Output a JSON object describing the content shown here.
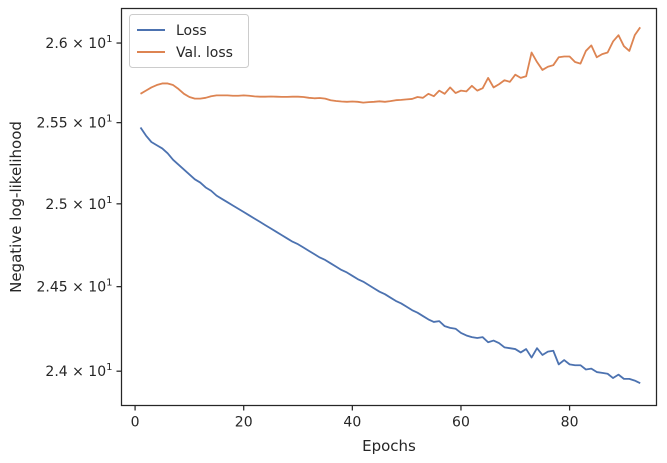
{
  "chart_data": {
    "type": "line",
    "xlabel": "Epochs",
    "ylabel": "Negative log-likelihood",
    "xlim": [
      -2.5,
      96
    ],
    "ylim": [
      23.8,
      26.22
    ],
    "yscale": "log",
    "grid": false,
    "legend_position": "top-left",
    "x_ticks": [
      0,
      20,
      40,
      60,
      80
    ],
    "x_tick_labels": [
      "0",
      "20",
      "40",
      "60",
      "80"
    ],
    "y_ticks": [
      {
        "value": 24.0,
        "mantissa": "2.4",
        "sep": " × ",
        "base": "10",
        "exp": "1"
      },
      {
        "value": 24.5,
        "mantissa": "2.45",
        "sep": " × ",
        "base": "10",
        "exp": "1"
      },
      {
        "value": 25.0,
        "mantissa": "2.5",
        "sep": " × ",
        "base": "10",
        "exp": "1"
      },
      {
        "value": 25.5,
        "mantissa": "2.55",
        "sep": " × ",
        "base": "10",
        "exp": "1"
      },
      {
        "value": 26.0,
        "mantissa": "2.6",
        "sep": " × ",
        "base": "10",
        "exp": "1"
      }
    ],
    "series": [
      {
        "name": "Loss",
        "color": "#4c72b0",
        "x": [
          1,
          2,
          3,
          4,
          5,
          6,
          7,
          8,
          9,
          10,
          11,
          12,
          13,
          14,
          15,
          16,
          17,
          18,
          19,
          20,
          21,
          22,
          23,
          24,
          25,
          26,
          27,
          28,
          29,
          30,
          31,
          32,
          33,
          34,
          35,
          36,
          37,
          38,
          39,
          40,
          41,
          42,
          43,
          44,
          45,
          46,
          47,
          48,
          49,
          50,
          51,
          52,
          53,
          54,
          55,
          56,
          57,
          58,
          59,
          60,
          61,
          62,
          63,
          64,
          65,
          66,
          67,
          68,
          69,
          70,
          71,
          72,
          73,
          74,
          75,
          76,
          77,
          78,
          79,
          80,
          81,
          82,
          83,
          84,
          85,
          86,
          87,
          88,
          89,
          90,
          91,
          92,
          93
        ],
        "y": [
          25.47,
          25.42,
          25.38,
          25.36,
          25.34,
          25.31,
          25.27,
          25.24,
          25.21,
          25.18,
          25.15,
          25.13,
          25.1,
          25.08,
          25.05,
          25.03,
          25.01,
          24.99,
          24.97,
          24.95,
          24.93,
          24.91,
          24.89,
          24.87,
          24.85,
          24.83,
          24.81,
          24.79,
          24.77,
          24.755,
          24.735,
          24.715,
          24.695,
          24.675,
          24.66,
          24.64,
          24.62,
          24.6,
          24.585,
          24.565,
          24.545,
          24.53,
          24.51,
          24.49,
          24.47,
          24.455,
          24.435,
          24.415,
          24.4,
          24.38,
          24.36,
          24.345,
          24.325,
          24.305,
          24.29,
          24.295,
          24.265,
          24.255,
          24.25,
          24.225,
          24.21,
          24.2,
          24.195,
          24.2,
          24.17,
          24.18,
          24.165,
          24.14,
          24.135,
          24.13,
          24.11,
          24.13,
          24.08,
          24.135,
          24.095,
          24.115,
          24.12,
          24.04,
          24.065,
          24.04,
          24.035,
          24.035,
          24.01,
          24.015,
          23.995,
          23.99,
          23.985,
          23.96,
          23.98,
          23.955,
          23.955,
          23.945,
          23.93
        ]
      },
      {
        "name": "Val. loss",
        "color": "#dd8452",
        "x": [
          1,
          2,
          3,
          4,
          5,
          6,
          7,
          8,
          9,
          10,
          11,
          12,
          13,
          14,
          15,
          16,
          17,
          18,
          19,
          20,
          21,
          22,
          23,
          24,
          25,
          26,
          27,
          28,
          29,
          30,
          31,
          32,
          33,
          34,
          35,
          36,
          37,
          38,
          39,
          40,
          41,
          42,
          43,
          44,
          45,
          46,
          47,
          48,
          49,
          50,
          51,
          52,
          53,
          54,
          55,
          56,
          57,
          58,
          59,
          60,
          61,
          62,
          63,
          64,
          65,
          66,
          67,
          68,
          69,
          70,
          71,
          72,
          73,
          74,
          75,
          76,
          77,
          78,
          79,
          80,
          81,
          82,
          83,
          84,
          85,
          86,
          87,
          88,
          89,
          90,
          91,
          92,
          93
        ],
        "y": [
          25.68,
          25.7,
          25.72,
          25.735,
          25.745,
          25.745,
          25.735,
          25.71,
          25.68,
          25.66,
          25.65,
          25.65,
          25.655,
          25.665,
          25.67,
          25.67,
          25.67,
          25.668,
          25.668,
          25.67,
          25.668,
          25.664,
          25.662,
          25.662,
          25.663,
          25.662,
          25.661,
          25.661,
          25.662,
          25.662,
          25.66,
          25.655,
          25.652,
          25.654,
          25.65,
          25.64,
          25.635,
          25.632,
          25.63,
          25.632,
          25.63,
          25.625,
          25.628,
          25.63,
          25.633,
          25.63,
          25.634,
          25.64,
          25.642,
          25.645,
          25.648,
          25.66,
          25.655,
          25.68,
          25.665,
          25.7,
          25.68,
          25.72,
          25.685,
          25.7,
          25.695,
          25.73,
          25.7,
          25.715,
          25.78,
          25.72,
          25.74,
          25.765,
          25.755,
          25.8,
          25.78,
          25.79,
          25.94,
          25.88,
          25.83,
          25.85,
          25.86,
          25.91,
          25.915,
          25.915,
          25.88,
          25.87,
          25.95,
          25.985,
          25.91,
          25.93,
          25.94,
          26.01,
          26.05,
          25.98,
          25.95,
          26.05,
          26.1
        ]
      }
    ]
  }
}
